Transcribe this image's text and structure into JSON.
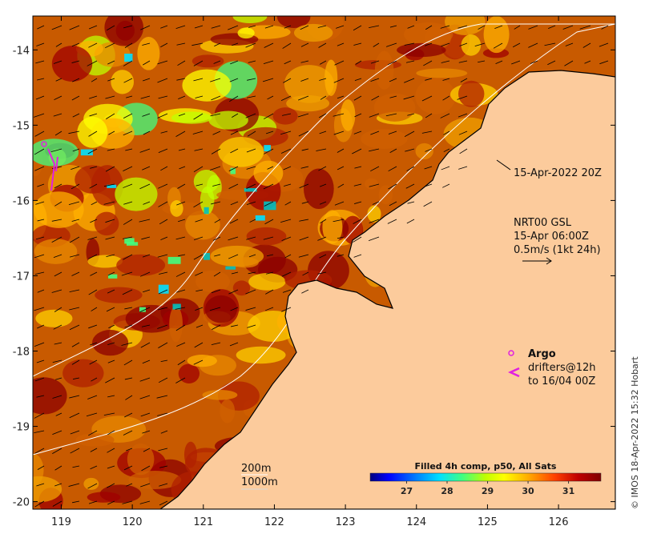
{
  "map": {
    "lon_ticks": [
      "119",
      "120",
      "121",
      "122",
      "123",
      "124",
      "125",
      "126"
    ],
    "lat_ticks": [
      "-14",
      "-15",
      "-16",
      "-17",
      "-18",
      "-19",
      "-20"
    ],
    "lon_range": [
      118.6,
      126.8
    ],
    "lat_range": [
      -20.1,
      -13.55
    ],
    "colors": {
      "land": "#fccb9c",
      "coast": "#000000",
      "isobath": "#ffffff",
      "argo": "#e020e0"
    }
  },
  "annotations": {
    "composite_time": "15-Apr-2022 20Z",
    "current_model": "NRT00 GSL",
    "current_time": "15-Apr 06:00Z",
    "current_scale": "0.5m/s (1kt 24h)",
    "argo_label": "Argo",
    "drifters_line1": "drifters@12h",
    "drifters_line2": "to 16/04 00Z",
    "isobath_200": "200m",
    "isobath_1000": "1000m",
    "credit": "© IMOS 18-Apr-2022 15:32 Hobart"
  },
  "colorbar": {
    "title": "Filled 4h comp, p50, All Sats",
    "ticks": [
      "27",
      "28",
      "29",
      "30",
      "31"
    ],
    "range": [
      26.1,
      31.8
    ],
    "stops": [
      "#00007f",
      "#0000ff",
      "#0080ff",
      "#00e0ff",
      "#40ff80",
      "#c0ff00",
      "#ffff00",
      "#ffb000",
      "#ff4000",
      "#c00000",
      "#800000"
    ]
  }
}
